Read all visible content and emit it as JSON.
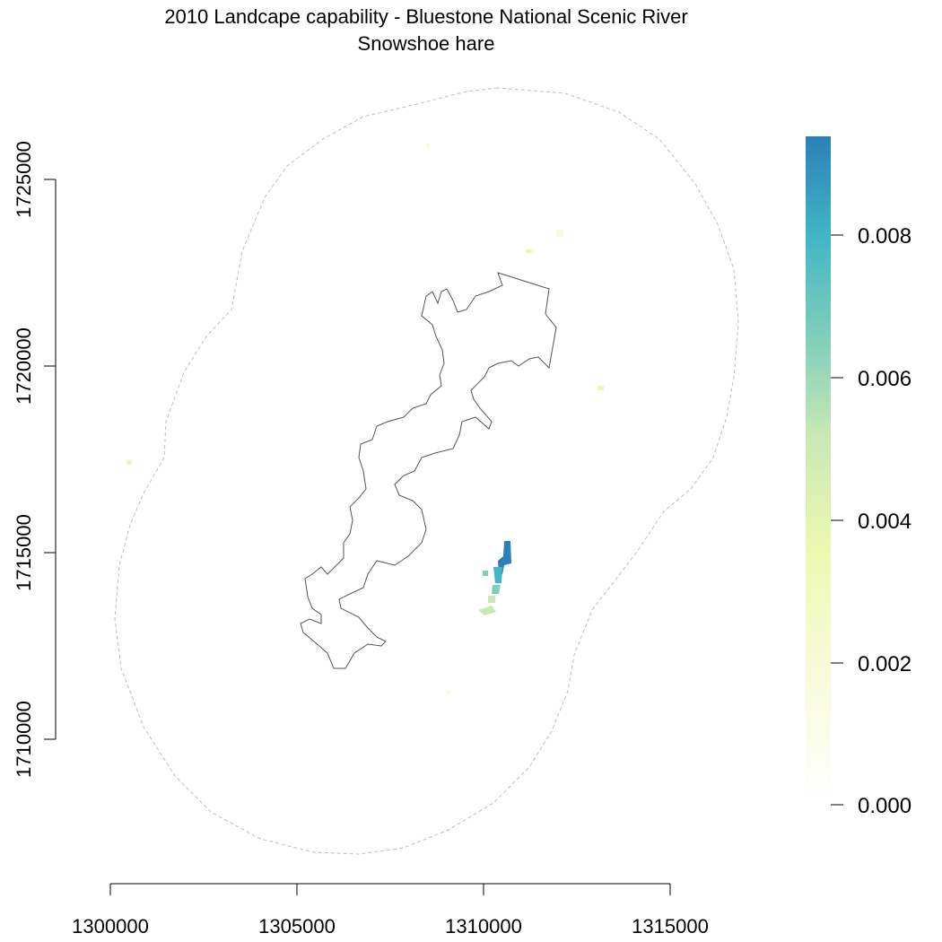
{
  "map": {
    "title": "2010 Landcape capability - Bluestone National Scenic River",
    "subtitle": "Snowshoe hare",
    "x_axis": {
      "ticks": [
        "1300000",
        "1305000",
        "1310000",
        "1315000"
      ]
    },
    "y_axis": {
      "ticks": [
        "1710000",
        "1715000",
        "1720000",
        "1725000"
      ]
    },
    "legend": {
      "ticks": [
        "0.000",
        "0.002",
        "0.004",
        "0.006",
        "0.008"
      ],
      "colors": [
        "#ffffff",
        "#f7fbd8",
        "#edf8b1",
        "#c7e9b4",
        "#7fcdbb",
        "#41b6c4",
        "#2c7fb8"
      ]
    },
    "colors": {
      "park_boundary": "#555555",
      "buffer_boundary": "#bdbdbd"
    }
  }
}
